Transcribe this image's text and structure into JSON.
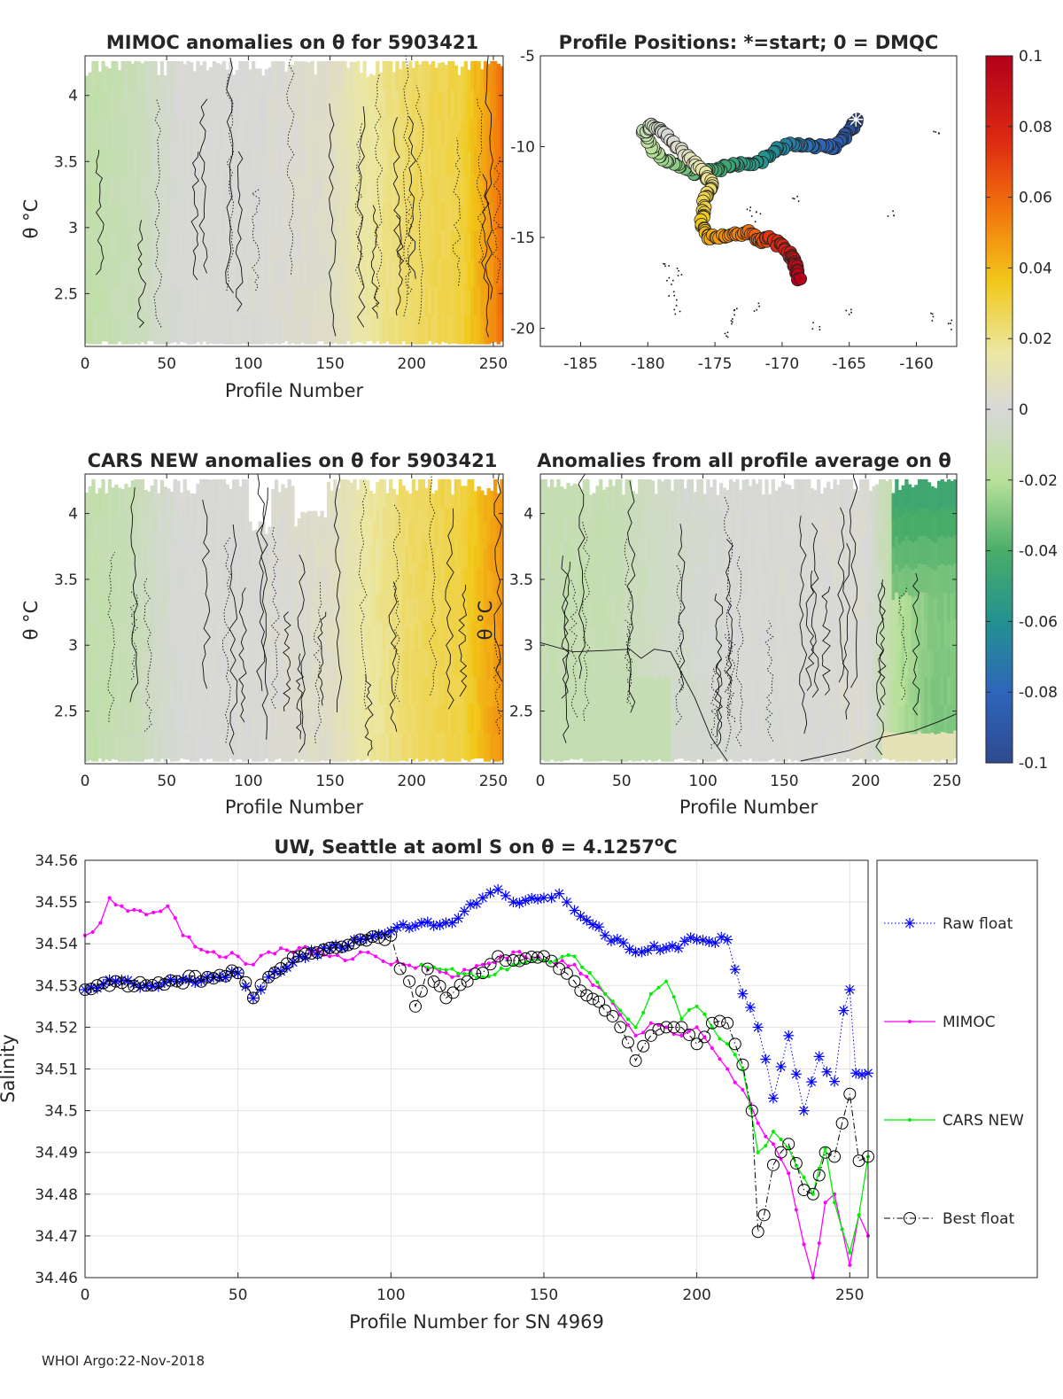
{
  "footer": "WHOI Argo:22-Nov-2018",
  "colorbar": {
    "ticks": [
      "0.1",
      "0.08",
      "0.06",
      "0.04",
      "0.02",
      "0",
      "-0.02",
      "-0.04",
      "-0.06",
      "-0.08",
      "-0.1"
    ],
    "range": [
      -0.1,
      0.1
    ]
  },
  "chart_data": [
    {
      "type": "heatmap",
      "id": "mimoc",
      "title": "MIMOC anomalies on θ  for 5903421",
      "xlabel": "Profile Number",
      "ylabel": "θ °C",
      "xlim": [
        0,
        256
      ],
      "ylim": [
        2.1,
        4.3
      ],
      "xticks": [
        "0",
        "50",
        "100",
        "150",
        "200",
        "250"
      ],
      "yticks": [
        "4",
        "3.5",
        "3",
        "2.5"
      ],
      "anomaly_trend_x": [
        0,
        30,
        60,
        100,
        150,
        170,
        200,
        230,
        250,
        256
      ],
      "anomaly_trend_value": [
        -0.015,
        -0.01,
        0,
        0,
        0.005,
        0.015,
        0.025,
        0.03,
        0.05,
        0.06
      ]
    },
    {
      "type": "scatter",
      "id": "positions",
      "title": "Profile Positions: *=start; 0 = DMQC",
      "xlim": [
        -188,
        -157
      ],
      "ylim": [
        -21,
        -5
      ],
      "xticks": [
        "-185",
        "-180",
        "-175",
        "-170",
        "-165",
        "-160"
      ],
      "yticks": [
        "-5",
        "-10",
        "-15",
        "-20"
      ],
      "track_lon": [
        -164.5,
        -165,
        -166,
        -167.5,
        -169,
        -170.5,
        -172,
        -173.5,
        -175,
        -176.5,
        -178,
        -179.5,
        -180.3,
        -179.6,
        -178.5,
        -177,
        -175.8,
        -175.2,
        -175.8,
        -176,
        -175.4,
        -174,
        -172.5,
        -171.5,
        -171,
        -170,
        -169.2,
        -169,
        -168.7
      ],
      "track_lat": [
        -8.5,
        -9.2,
        -10,
        -10,
        -9.8,
        -10.2,
        -11,
        -11,
        -11.3,
        -11.5,
        -11,
        -10.3,
        -9.2,
        -8.8,
        -9.5,
        -10.6,
        -11.4,
        -12.2,
        -13,
        -14.3,
        -15,
        -14.9,
        -14.7,
        -15.2,
        -15,
        -15.5,
        -16.1,
        -16.6,
        -17.4
      ]
    },
    {
      "type": "heatmap",
      "id": "cars",
      "title": "CARS NEW anomalies on θ for 5903421",
      "xlabel": "Profile Number",
      "ylabel": "θ °C",
      "xlim": [
        0,
        256
      ],
      "ylim": [
        2.1,
        4.3
      ],
      "xticks": [
        "0",
        "50",
        "100",
        "150",
        "200",
        "250"
      ],
      "yticks": [
        "4",
        "3.5",
        "3",
        "2.5"
      ],
      "anomaly_trend_x": [
        0,
        30,
        60,
        100,
        150,
        170,
        200,
        230,
        250,
        256
      ],
      "anomaly_trend_value": [
        -0.015,
        -0.01,
        0,
        0,
        0.005,
        0.015,
        0.025,
        0.03,
        0.045,
        0.05
      ]
    },
    {
      "type": "heatmap",
      "id": "allavg",
      "title": "Anomalies from all profile average on θ",
      "xlabel": "Profile Number",
      "ylabel": "θ °C",
      "xlim": [
        0,
        256
      ],
      "ylim": [
        2.1,
        4.3
      ],
      "xticks": [
        "0",
        "50",
        "100",
        "150",
        "200",
        "250"
      ],
      "yticks": [
        "4",
        "3.5",
        "3",
        "2.5"
      ],
      "anomaly_trend_x": [
        0,
        40,
        80,
        120,
        160,
        200,
        220,
        240,
        256
      ],
      "anomaly_trend_value": [
        -0.012,
        -0.012,
        -0.005,
        0,
        0,
        0.002,
        -0.02,
        -0.03,
        -0.03
      ]
    },
    {
      "type": "line",
      "id": "salinity",
      "title": "UW, Seattle at aoml S on θ = 4.1257",
      "title_sup": "o",
      "title_unit": "C",
      "xlabel": "Profile Number for SN 4969",
      "ylabel": "Salinity",
      "xlim": [
        0,
        256
      ],
      "ylim": [
        34.46,
        34.56
      ],
      "xticks": [
        "0",
        "50",
        "100",
        "150",
        "200",
        "250"
      ],
      "yticks": [
        "34.56",
        "34.55",
        "34.54",
        "34.53",
        "34.52",
        "34.51",
        "34.5",
        "34.49",
        "34.48",
        "34.47",
        "34.46"
      ],
      "legend_position": "right",
      "series": [
        {
          "name": "Raw float",
          "color": "#0000ff",
          "marker": "star",
          "x": [
            0,
            10,
            20,
            30,
            40,
            50,
            55,
            60,
            70,
            80,
            90,
            100,
            110,
            120,
            130,
            135,
            140,
            150,
            155,
            160,
            170,
            180,
            190,
            200,
            210,
            215,
            220,
            225,
            230,
            235,
            240,
            245,
            248,
            250,
            252,
            256
          ],
          "y": [
            34.529,
            34.531,
            34.53,
            34.531,
            34.532,
            34.533,
            34.527,
            34.532,
            34.537,
            34.539,
            34.541,
            34.543,
            34.545,
            34.545,
            34.551,
            34.553,
            34.55,
            34.551,
            34.552,
            34.548,
            34.542,
            34.538,
            34.539,
            34.541,
            34.541,
            34.528,
            34.52,
            34.503,
            34.518,
            34.5,
            34.513,
            34.507,
            34.524,
            34.529,
            34.509,
            34.509
          ]
        },
        {
          "name": "MIMOC",
          "color": "#ff00ff",
          "marker": "dot",
          "x": [
            0,
            5,
            8,
            12,
            20,
            27,
            32,
            40,
            50,
            55,
            60,
            70,
            80,
            85,
            90,
            95,
            100,
            110,
            120,
            130,
            140,
            150,
            160,
            170,
            175,
            180,
            185,
            190,
            195,
            200,
            205,
            210,
            215,
            220,
            225,
            230,
            235,
            238,
            242,
            245,
            250,
            253,
            256
          ],
          "y": [
            34.542,
            34.545,
            34.551,
            34.549,
            34.547,
            34.549,
            34.542,
            34.538,
            34.537,
            34.535,
            34.538,
            34.539,
            34.537,
            34.536,
            34.538,
            34.537,
            34.535,
            34.535,
            34.532,
            34.535,
            34.538,
            34.536,
            34.535,
            34.528,
            34.523,
            34.518,
            34.521,
            34.52,
            34.518,
            34.52,
            34.515,
            34.51,
            34.505,
            34.497,
            34.492,
            34.485,
            34.468,
            34.46,
            34.478,
            34.48,
            34.463,
            34.475,
            34.47
          ]
        },
        {
          "name": "CARS NEW",
          "color": "#00ee00",
          "marker": "dot",
          "x": [
            110,
            120,
            130,
            140,
            150,
            160,
            165,
            170,
            175,
            180,
            185,
            190,
            195,
            200,
            205,
            210,
            215,
            220,
            225,
            230,
            235,
            238,
            242,
            245,
            250,
            253,
            256
          ],
          "y": [
            34.535,
            34.534,
            34.532,
            34.535,
            34.536,
            34.537,
            34.533,
            34.528,
            34.524,
            34.52,
            34.528,
            34.531,
            34.522,
            34.525,
            34.52,
            34.516,
            34.51,
            34.49,
            34.495,
            34.491,
            34.484,
            34.48,
            34.491,
            34.478,
            34.466,
            34.475,
            34.489
          ]
        },
        {
          "name": "Best float",
          "color": "#000000",
          "marker": "circle",
          "x": [
            0,
            10,
            20,
            30,
            40,
            50,
            55,
            60,
            70,
            80,
            90,
            100,
            103,
            106,
            108,
            112,
            118,
            125,
            130,
            135,
            140,
            150,
            155,
            160,
            170,
            175,
            180,
            185,
            190,
            195,
            200,
            205,
            210,
            215,
            218,
            220,
            222,
            225,
            230,
            235,
            238,
            242,
            245,
            250,
            253,
            256
          ],
          "y": [
            34.529,
            34.531,
            34.53,
            34.531,
            34.532,
            34.533,
            34.527,
            34.532,
            34.537,
            34.539,
            34.541,
            34.542,
            34.534,
            34.531,
            34.525,
            34.534,
            34.527,
            34.531,
            34.533,
            34.537,
            34.536,
            34.537,
            34.534,
            34.531,
            34.524,
            34.52,
            34.512,
            34.518,
            34.52,
            34.52,
            34.516,
            34.521,
            34.521,
            34.511,
            34.5,
            34.471,
            34.475,
            34.487,
            34.492,
            34.481,
            34.48,
            34.49,
            34.489,
            34.504,
            34.488,
            34.489
          ]
        }
      ]
    }
  ]
}
